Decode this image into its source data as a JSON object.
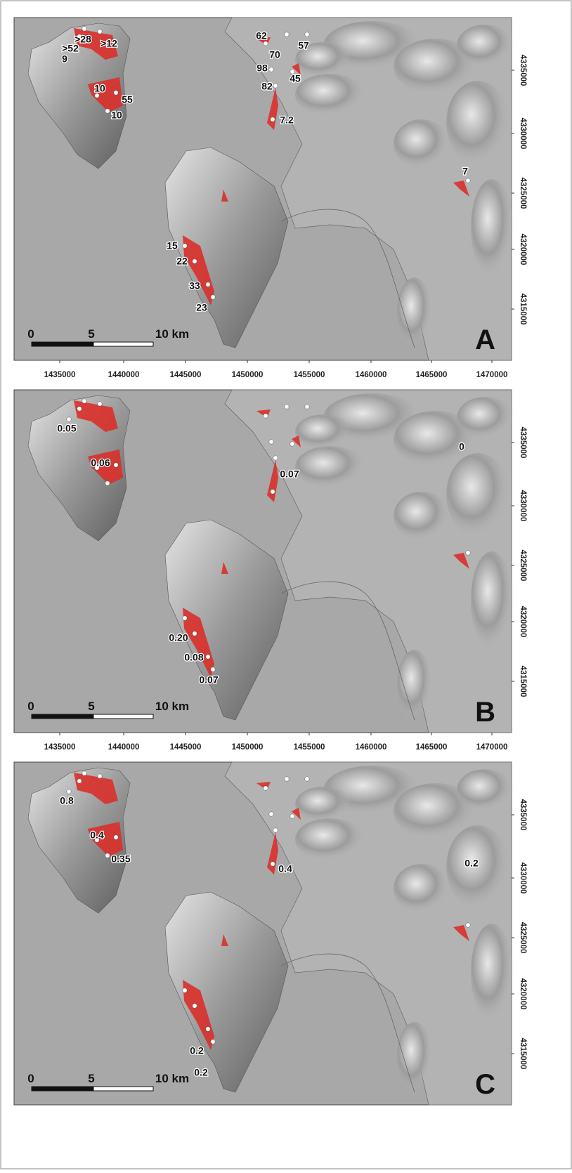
{
  "x_ticks": [
    "1435000",
    "1440000",
    "1445000",
    "1450000",
    "1455000",
    "1460000",
    "1465000",
    "1470000"
  ],
  "y_ticks": [
    "4315000",
    "4320000",
    "4325000",
    "4330000",
    "4335000"
  ],
  "scale_bar": [
    "0",
    "5",
    "10 km"
  ],
  "panels": [
    {
      "letter": "A",
      "labels": [
        "62",
        "70",
        "57",
        "98",
        "45",
        "82",
        "7.2",
        ">28",
        ">52",
        ">12",
        "9",
        "10",
        "55",
        "10",
        "7",
        "15",
        "22",
        "33",
        "23"
      ]
    },
    {
      "letter": "B",
      "labels": [
        "0.05",
        "0.06",
        "0.07",
        "0",
        "0.20",
        "0.08",
        "0.07"
      ]
    },
    {
      "letter": "C",
      "labels": [
        "0.8",
        "0.4",
        "0.35",
        "0.4",
        "0.2",
        "0.2",
        "0.2"
      ]
    }
  ]
}
